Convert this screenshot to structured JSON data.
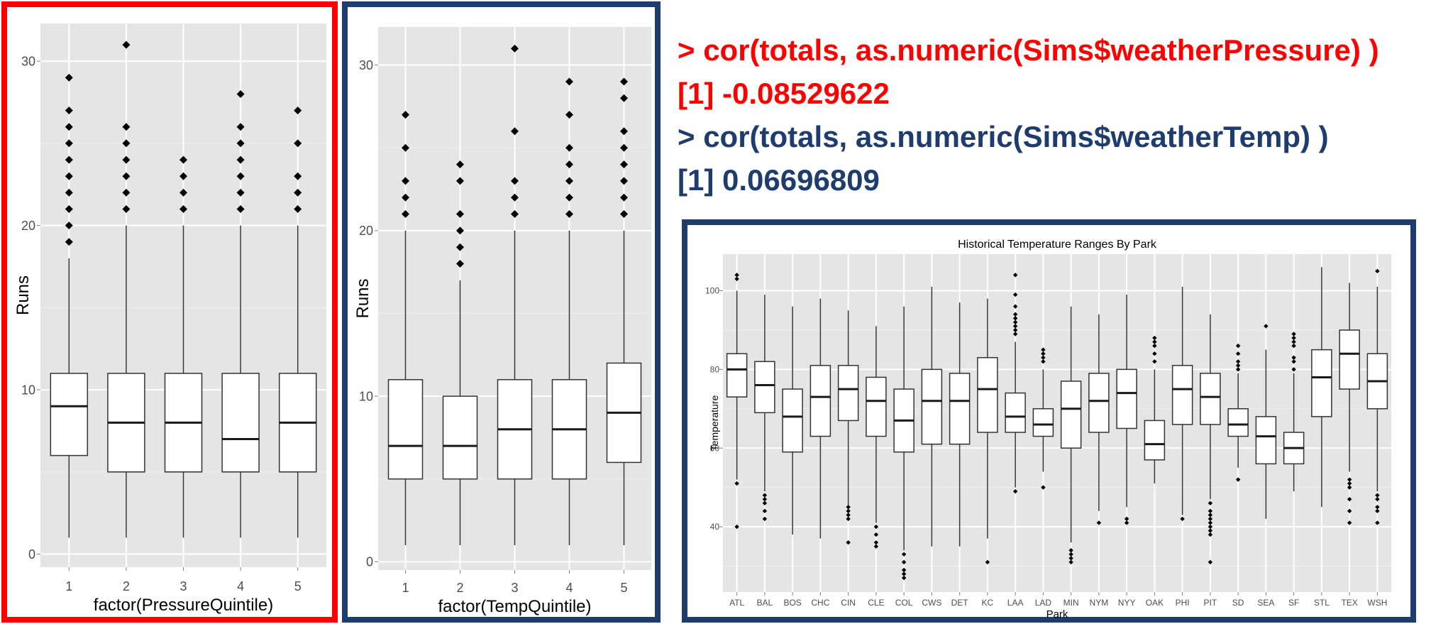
{
  "console": {
    "lines": [
      {
        "text": "> cor(totals, as.numeric(Sims$weatherPressure) )",
        "color": "#ff0000"
      },
      {
        "text": "[1] -0.08529622",
        "color": "#ff0000"
      },
      {
        "text": "> cor(totals, as.numeric(Sims$weatherTemp) )",
        "color": "#1f3c6e"
      },
      {
        "text": "[1] 0.06696809",
        "color": "#1f3c6e"
      }
    ]
  },
  "frame_colors": {
    "pressure": "#ff0000",
    "temp": "#1f3c6e",
    "park": "#1f3c6e"
  },
  "chart_data": [
    {
      "type": "boxplot",
      "id": "pressure",
      "title": "",
      "xlabel": "factor(PressureQuintile)",
      "ylabel": "Runs",
      "categories": [
        "1",
        "2",
        "3",
        "4",
        "5"
      ],
      "ylim": [
        -0.8,
        32.3
      ],
      "yticks": [
        0,
        10,
        20,
        30
      ],
      "grid": true,
      "panel_color": "#e5e5e5",
      "boxes": [
        {
          "low": 1,
          "q1": 6,
          "median": 9,
          "q3": 11,
          "high": 18,
          "outliers": [
            19,
            20,
            21,
            22,
            23,
            24,
            25,
            26,
            27,
            29
          ]
        },
        {
          "low": 1,
          "q1": 5,
          "median": 8,
          "q3": 11,
          "high": 20,
          "outliers": [
            21,
            22,
            23,
            24,
            25,
            26,
            31
          ]
        },
        {
          "low": 1,
          "q1": 5,
          "median": 8,
          "q3": 11,
          "high": 20,
          "outliers": [
            21,
            22,
            23,
            24
          ]
        },
        {
          "low": 1,
          "q1": 5,
          "median": 7,
          "q3": 11,
          "high": 20,
          "outliers": [
            21,
            22,
            23,
            24,
            25,
            26,
            28
          ]
        },
        {
          "low": 1,
          "q1": 5,
          "median": 8,
          "q3": 11,
          "high": 20,
          "outliers": [
            21,
            22,
            23,
            25,
            27
          ]
        }
      ]
    },
    {
      "type": "boxplot",
      "id": "temp",
      "title": "",
      "xlabel": "factor(TempQuintile)",
      "ylabel": "Runs",
      "categories": [
        "1",
        "2",
        "3",
        "4",
        "5"
      ],
      "ylim": [
        -0.5,
        32.3
      ],
      "yticks": [
        0,
        10,
        20,
        30
      ],
      "grid": true,
      "panel_color": "#e5e5e5",
      "boxes": [
        {
          "low": 1,
          "q1": 5,
          "median": 7,
          "q3": 11,
          "high": 20,
          "outliers": [
            21,
            22,
            23,
            25,
            27
          ]
        },
        {
          "low": 1,
          "q1": 5,
          "median": 7,
          "q3": 10,
          "high": 17,
          "outliers": [
            18,
            19,
            20,
            21,
            23,
            24
          ]
        },
        {
          "low": 1,
          "q1": 5,
          "median": 8,
          "q3": 11,
          "high": 20,
          "outliers": [
            21,
            22,
            23,
            26,
            31
          ]
        },
        {
          "low": 1,
          "q1": 5,
          "median": 8,
          "q3": 11,
          "high": 20,
          "outliers": [
            21,
            22,
            23,
            24,
            25,
            27,
            29
          ]
        },
        {
          "low": 1,
          "q1": 6,
          "median": 9,
          "q3": 12,
          "high": 20,
          "outliers": [
            21,
            22,
            23,
            24,
            25,
            26,
            28,
            29
          ]
        }
      ]
    },
    {
      "type": "boxplot",
      "id": "park",
      "title": "Historical Temperature Ranges By Park",
      "xlabel": "Park",
      "ylabel": "Temperature",
      "categories": [
        "ATL",
        "BAL",
        "BOS",
        "CHC",
        "CIN",
        "CLE",
        "COL",
        "CWS",
        "DET",
        "KC",
        "LAA",
        "LAD",
        "MIN",
        "NYM",
        "NYY",
        "OAK",
        "PHI",
        "PIT",
        "SD",
        "SEA",
        "SF",
        "STL",
        "TEX",
        "WSH"
      ],
      "ylim": [
        23.4,
        109.3
      ],
      "yticks": [
        40,
        60,
        80,
        100
      ],
      "grid": true,
      "panel_color": "#e5e5e5",
      "boxes": [
        {
          "low": 52,
          "q1": 73,
          "median": 80,
          "q3": 84,
          "high": 100,
          "outliers": [
            40,
            51,
            103,
            104
          ]
        },
        {
          "low": 49,
          "q1": 69,
          "median": 76,
          "q3": 82,
          "high": 99,
          "outliers": [
            42,
            44,
            46,
            47,
            48
          ]
        },
        {
          "low": 38,
          "q1": 59,
          "median": 68,
          "q3": 75,
          "high": 96,
          "outliers": []
        },
        {
          "low": 37,
          "q1": 63,
          "median": 73,
          "q3": 81,
          "high": 98,
          "outliers": []
        },
        {
          "low": 45,
          "q1": 67,
          "median": 75,
          "q3": 81,
          "high": 95,
          "outliers": [
            36,
            42,
            43,
            44,
            45
          ]
        },
        {
          "low": 41,
          "q1": 63,
          "median": 72,
          "q3": 78,
          "high": 91,
          "outliers": [
            35,
            36,
            38,
            40
          ]
        },
        {
          "low": 34,
          "q1": 59,
          "median": 67,
          "q3": 75,
          "high": 96,
          "outliers": [
            27,
            28,
            29,
            31,
            33
          ]
        },
        {
          "low": 35,
          "q1": 61,
          "median": 72,
          "q3": 80,
          "high": 101,
          "outliers": []
        },
        {
          "low": 35,
          "q1": 61,
          "median": 72,
          "q3": 79,
          "high": 97,
          "outliers": []
        },
        {
          "low": 37,
          "q1": 64,
          "median": 75,
          "q3": 83,
          "high": 98,
          "outliers": [
            31
          ]
        },
        {
          "low": 50,
          "q1": 64,
          "median": 68,
          "q3": 74,
          "high": 87,
          "outliers": [
            49,
            89,
            90,
            91,
            92,
            93,
            94,
            96,
            99,
            104
          ]
        },
        {
          "low": 54,
          "q1": 63,
          "median": 66,
          "q3": 70,
          "high": 80,
          "outliers": [
            50,
            82,
            83,
            84,
            85
          ]
        },
        {
          "low": 36,
          "q1": 60,
          "median": 70,
          "q3": 77,
          "high": 96,
          "outliers": [
            31,
            32,
            33,
            34
          ]
        },
        {
          "low": 44,
          "q1": 64,
          "median": 72,
          "q3": 79,
          "high": 94,
          "outliers": [
            41
          ]
        },
        {
          "low": 45,
          "q1": 65,
          "median": 74,
          "q3": 80,
          "high": 99,
          "outliers": [
            41,
            42
          ]
        },
        {
          "low": 51,
          "q1": 57,
          "median": 61,
          "q3": 67,
          "high": 80,
          "outliers": [
            82,
            84,
            86,
            87,
            88
          ]
        },
        {
          "low": 43,
          "q1": 66,
          "median": 75,
          "q3": 81,
          "high": 101,
          "outliers": [
            42
          ]
        },
        {
          "low": 47,
          "q1": 66,
          "median": 73,
          "q3": 79,
          "high": 94,
          "outliers": [
            31,
            38,
            39,
            40,
            41,
            42,
            43,
            44,
            46
          ]
        },
        {
          "low": 55,
          "q1": 63,
          "median": 66,
          "q3": 70,
          "high": 79,
          "outliers": [
            52,
            80,
            81,
            82,
            84,
            86
          ]
        },
        {
          "low": 42,
          "q1": 56,
          "median": 63,
          "q3": 68,
          "high": 85,
          "outliers": [
            91
          ]
        },
        {
          "low": 49,
          "q1": 56,
          "median": 60,
          "q3": 64,
          "high": 79,
          "outliers": [
            80,
            82,
            83,
            86,
            87,
            88,
            89
          ]
        },
        {
          "low": 45,
          "q1": 68,
          "median": 78,
          "q3": 85,
          "high": 106,
          "outliers": []
        },
        {
          "low": 54,
          "q1": 75,
          "median": 84,
          "q3": 90,
          "high": 102,
          "outliers": [
            41,
            44,
            47,
            50,
            51,
            52
          ]
        },
        {
          "low": 49,
          "q1": 70,
          "median": 77,
          "q3": 84,
          "high": 101,
          "outliers": [
            41,
            44,
            45,
            47,
            48,
            105
          ]
        }
      ]
    }
  ]
}
